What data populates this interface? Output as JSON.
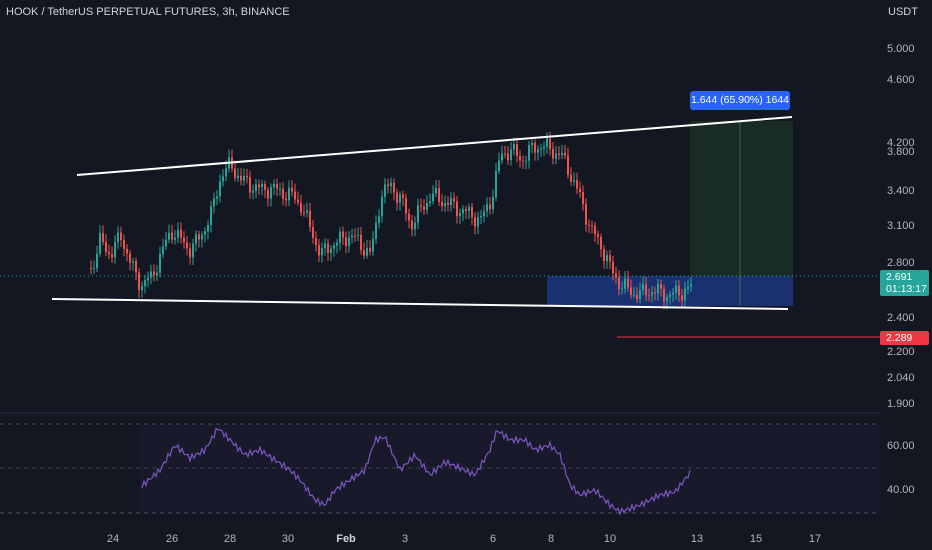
{
  "header": {
    "title": "HOOK / TetherUS PERPETUAL FUTURES, 3h, BINANCE",
    "currency": "USDT"
  },
  "price_axis": {
    "ticks": [
      {
        "label": "5.000",
        "value": 5.0
      },
      {
        "label": "4.600",
        "value": 4.6
      },
      {
        "label": "4.200",
        "value": 4.2
      },
      {
        "label": "3.800",
        "value": 3.8
      },
      {
        "label": "3.400",
        "value": 3.4
      },
      {
        "label": "3.100",
        "value": 3.1
      },
      {
        "label": "2.800",
        "value": 2.8
      },
      {
        "label": "2.400",
        "value": 2.4
      },
      {
        "label": "2.200",
        "value": 2.2
      },
      {
        "label": "2.040",
        "value": 2.04
      },
      {
        "label": "1.900",
        "value": 1.9
      }
    ]
  },
  "current_price": {
    "value": "2.691",
    "countdown": "01:13:17",
    "color": "#26a69a"
  },
  "stop_line": {
    "value": "2.289",
    "color": "#f23645"
  },
  "projection": {
    "label": "1.644 (65.90%) 1644",
    "target_color": "#2e7d32",
    "entry_color": "#2962ff"
  },
  "rsi": {
    "ticks": [
      {
        "label": "60.00",
        "value": 60
      },
      {
        "label": "40.00",
        "value": 40
      }
    ],
    "line_color": "#7e57c2"
  },
  "time_axis": {
    "ticks": [
      {
        "label": "24",
        "bold": false
      },
      {
        "label": "26",
        "bold": false
      },
      {
        "label": "28",
        "bold": false
      },
      {
        "label": "30",
        "bold": false
      },
      {
        "label": "Feb",
        "bold": true
      },
      {
        "label": "3",
        "bold": false
      },
      {
        "label": "6",
        "bold": false
      },
      {
        "label": "8",
        "bold": false
      },
      {
        "label": "10",
        "bold": false
      },
      {
        "label": "13",
        "bold": false
      },
      {
        "label": "15",
        "bold": false
      },
      {
        "label": "17",
        "bold": false
      }
    ]
  },
  "colors": {
    "up": "#26a69a",
    "down": "#ef5350",
    "trendline": "#ffffff",
    "background": "#131722"
  }
}
